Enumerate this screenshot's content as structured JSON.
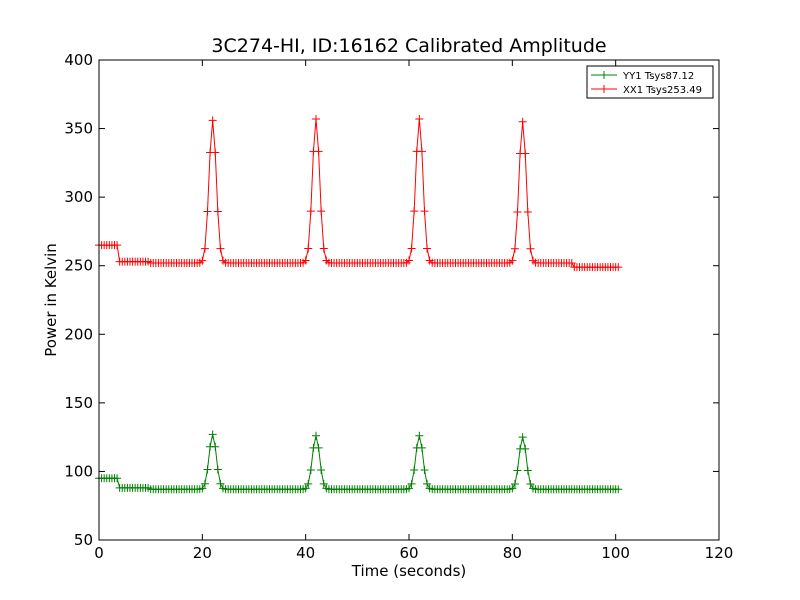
{
  "chart_data": {
    "type": "line",
    "title": "3C274-HI, ID:16162 Calibrated Amplitude",
    "xlabel": "Time (seconds)",
    "ylabel": "Power in Kelvin",
    "xlim": [
      0,
      120
    ],
    "ylim": [
      50,
      400
    ],
    "xticks": [
      0,
      20,
      40,
      60,
      80,
      100,
      120
    ],
    "yticks": [
      50,
      100,
      150,
      200,
      250,
      300,
      350,
      400
    ],
    "grid": false,
    "legend_position": "top-right",
    "series": [
      {
        "name": "YY1 Tsys87.12",
        "color": "#008000",
        "marker": "plus",
        "baseline_segments": [
          {
            "start": 0,
            "end": 4,
            "value": 95
          },
          {
            "start": 4,
            "end": 10,
            "value": 88
          },
          {
            "start": 10,
            "end": 94,
            "value": 87
          },
          {
            "start": 94,
            "end": 100.5,
            "value": 87
          }
        ],
        "peaks": [
          {
            "x": 22,
            "value": 127
          },
          {
            "x": 42,
            "value": 126
          },
          {
            "x": 62,
            "value": 126
          },
          {
            "x": 82,
            "value": 125
          }
        ]
      },
      {
        "name": "XX1 Tsys253.49",
        "color": "#ff0000",
        "marker": "plus",
        "baseline_segments": [
          {
            "start": 0,
            "end": 4,
            "value": 265
          },
          {
            "start": 4,
            "end": 10,
            "value": 253
          },
          {
            "start": 10,
            "end": 92,
            "value": 252
          },
          {
            "start": 92,
            "end": 100.5,
            "value": 249
          }
        ],
        "peaks": [
          {
            "x": 22,
            "value": 356
          },
          {
            "x": 42,
            "value": 357
          },
          {
            "x": 62,
            "value": 357
          },
          {
            "x": 82,
            "value": 355
          }
        ]
      }
    ]
  }
}
